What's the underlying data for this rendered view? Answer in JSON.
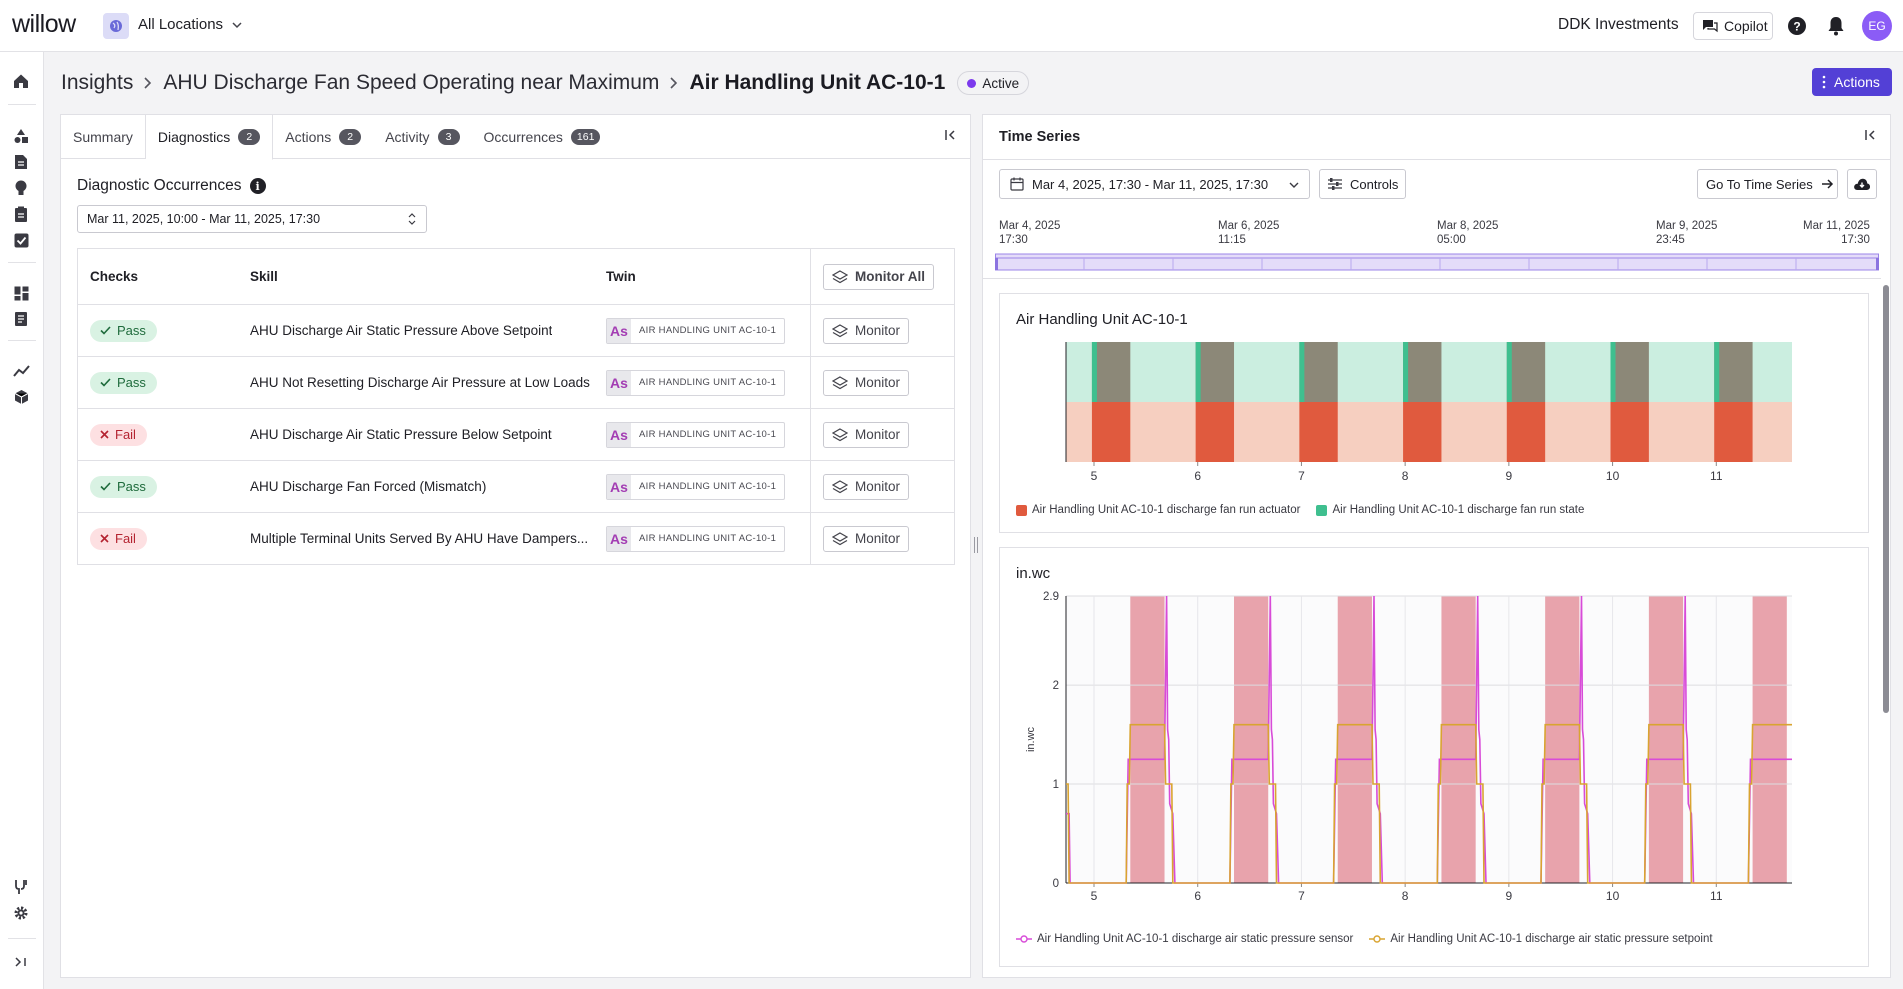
{
  "app": {
    "logo": "willow",
    "location": "All Locations",
    "company": "DDK Investments",
    "copilot_label": "Copilot",
    "avatar_initials": "EG"
  },
  "breadcrumb": {
    "root": "Insights",
    "insight": "AHU Discharge Fan Speed Operating near Maximum",
    "current": "Air Handling Unit AC-10-1",
    "status": "Active",
    "actions_label": "Actions"
  },
  "tabs": [
    {
      "label": "Summary",
      "count": null
    },
    {
      "label": "Diagnostics",
      "count": "2"
    },
    {
      "label": "Actions",
      "count": "2"
    },
    {
      "label": "Activity",
      "count": "3"
    },
    {
      "label": "Occurrences",
      "count": "161"
    }
  ],
  "diagnostics": {
    "title": "Diagnostic Occurrences",
    "date_range": "Mar 11, 2025, 10:00 - Mar 11, 2025, 17:30",
    "columns": {
      "checks": "Checks",
      "skill": "Skill",
      "twin": "Twin",
      "monitor_all": "Monitor All"
    },
    "monitor_label": "Monitor",
    "twin_initials": "As",
    "rows": [
      {
        "check": "Pass",
        "status": "pass",
        "skill": "AHU Discharge Air Static Pressure Above Setpoint",
        "twin": "AIR HANDLING UNIT AC-10-1"
      },
      {
        "check": "Pass",
        "status": "pass",
        "skill": "AHU Not Resetting Discharge Air Pressure at Low Loads",
        "twin": "AIR HANDLING UNIT AC-10-1"
      },
      {
        "check": "Fail",
        "status": "fail",
        "skill": "AHU Discharge Air Static Pressure Below Setpoint",
        "twin": "AIR HANDLING UNIT AC-10-1"
      },
      {
        "check": "Pass",
        "status": "pass",
        "skill": "AHU Discharge Fan Forced (Mismatch)",
        "twin": "AIR HANDLING UNIT AC-10-1"
      },
      {
        "check": "Fail",
        "status": "fail",
        "skill": "Multiple Terminal Units Served By AHU Have Dampers...",
        "twin": "AIR HANDLING UNIT AC-10-1"
      }
    ]
  },
  "time_series": {
    "title": "Time Series",
    "date_range": "Mar 4, 2025, 17:30 - Mar 11, 2025, 17:30",
    "controls_label": "Controls",
    "goto_label": "Go To Time Series",
    "timeline_labels": [
      {
        "date": "Mar 4, 2025",
        "time": "17:30"
      },
      {
        "date": "Mar 6, 2025",
        "time": "11:15"
      },
      {
        "date": "Mar 8, 2025",
        "time": "05:00"
      },
      {
        "date": "Mar 9, 2025",
        "time": "23:45"
      },
      {
        "date": "Mar 11, 2025",
        "time": "17:30"
      }
    ]
  },
  "colors": {
    "accent": "#5340d6",
    "actuator": "#e05a3e",
    "actuator_light": "#f6cfc0",
    "run_state_on": "#8c8878",
    "run_state_off": "#cbeee0",
    "run_state_edge": "#3fbf8f",
    "sensor": "#d84bd8",
    "setpoint": "#d9a431",
    "fail_band": "#e8a3ac"
  },
  "chart_data": [
    {
      "type": "area",
      "title": "Air Handling Unit AC-10-1",
      "x_ticks": [
        "5",
        "6",
        "7",
        "8",
        "9",
        "10",
        "11"
      ],
      "x_range": [
        4.73,
        11.73
      ],
      "on_periods": [
        [
          4.98,
          5.35
        ],
        [
          5.98,
          6.35
        ],
        [
          6.98,
          7.35
        ],
        [
          7.98,
          8.35
        ],
        [
          8.98,
          9.35
        ],
        [
          9.98,
          10.35
        ],
        [
          10.98,
          11.35
        ]
      ],
      "series": [
        {
          "name": "Air Handling Unit AC-10-1 discharge fan run actuator",
          "color": "#e05a3e"
        },
        {
          "name": "Air Handling Unit AC-10-1 discharge fan run state",
          "color": "#3fbf8f"
        }
      ]
    },
    {
      "type": "line",
      "title": "in.wc",
      "ylabel": "in.wc",
      "ylim": [
        0,
        2.9
      ],
      "y_ticks": [
        "0",
        "1",
        "2",
        "2.9"
      ],
      "x_ticks": [
        "5",
        "6",
        "7",
        "8",
        "9",
        "10",
        "11"
      ],
      "x_range": [
        4.73,
        11.73
      ],
      "fail_bands": [
        [
          5.35,
          5.68
        ],
        [
          6.35,
          6.68
        ],
        [
          7.35,
          7.68
        ],
        [
          8.35,
          8.68
        ],
        [
          9.35,
          9.68
        ],
        [
          10.35,
          10.68
        ],
        [
          11.35,
          11.68
        ]
      ],
      "series": [
        {
          "name": "Air Handling Unit AC-10-1 discharge air static pressure sensor",
          "color": "#d84bd8",
          "points": [
            [
              4.73,
              0.7
            ],
            [
              4.76,
              0.7
            ],
            [
              4.77,
              0
            ],
            [
              5.31,
              0
            ],
            [
              5.33,
              1.25
            ],
            [
              5.68,
              1.25
            ],
            [
              5.7,
              2.9
            ],
            [
              5.71,
              1.55
            ],
            [
              5.72,
              1.45
            ],
            [
              5.73,
              0.8
            ],
            [
              5.76,
              0.7
            ],
            [
              5.78,
              0
            ],
            [
              6.31,
              0
            ],
            [
              6.33,
              1.25
            ],
            [
              6.68,
              1.25
            ],
            [
              6.7,
              2.9
            ],
            [
              6.71,
              1.55
            ],
            [
              6.72,
              1.45
            ],
            [
              6.73,
              0.8
            ],
            [
              6.76,
              0.7
            ],
            [
              6.78,
              0
            ],
            [
              7.31,
              0
            ],
            [
              7.33,
              1.25
            ],
            [
              7.68,
              1.25
            ],
            [
              7.7,
              2.9
            ],
            [
              7.71,
              1.55
            ],
            [
              7.72,
              1.45
            ],
            [
              7.73,
              0.8
            ],
            [
              7.76,
              0.7
            ],
            [
              7.78,
              0
            ],
            [
              8.31,
              0
            ],
            [
              8.33,
              1.25
            ],
            [
              8.68,
              1.25
            ],
            [
              8.7,
              2.9
            ],
            [
              8.71,
              1.55
            ],
            [
              8.72,
              1.45
            ],
            [
              8.73,
              0.8
            ],
            [
              8.76,
              0.7
            ],
            [
              8.78,
              0
            ],
            [
              9.31,
              0
            ],
            [
              9.33,
              1.25
            ],
            [
              9.68,
              1.25
            ],
            [
              9.7,
              2.9
            ],
            [
              9.71,
              1.55
            ],
            [
              9.72,
              1.45
            ],
            [
              9.73,
              0.8
            ],
            [
              9.76,
              0.7
            ],
            [
              9.78,
              0
            ],
            [
              10.31,
              0
            ],
            [
              10.33,
              1.25
            ],
            [
              10.68,
              1.25
            ],
            [
              10.7,
              2.9
            ],
            [
              10.71,
              1.55
            ],
            [
              10.72,
              1.45
            ],
            [
              10.73,
              0.8
            ],
            [
              10.76,
              0.7
            ],
            [
              10.78,
              0
            ],
            [
              11.31,
              0
            ],
            [
              11.33,
              1.25
            ],
            [
              11.73,
              1.25
            ]
          ]
        },
        {
          "name": "Air Handling Unit AC-10-1 discharge air static pressure setpoint",
          "color": "#d9a431",
          "points": [
            [
              4.73,
              1
            ],
            [
              4.75,
              1
            ],
            [
              4.76,
              0
            ],
            [
              5.31,
              0
            ],
            [
              5.32,
              1
            ],
            [
              5.34,
              1
            ],
            [
              5.35,
              1.6
            ],
            [
              5.68,
              1.6
            ],
            [
              5.69,
              1
            ],
            [
              5.75,
              1
            ],
            [
              5.76,
              0
            ],
            [
              6.31,
              0
            ],
            [
              6.32,
              1
            ],
            [
              6.34,
              1
            ],
            [
              6.35,
              1.6
            ],
            [
              6.68,
              1.6
            ],
            [
              6.69,
              1
            ],
            [
              6.75,
              1
            ],
            [
              6.76,
              0
            ],
            [
              7.31,
              0
            ],
            [
              7.32,
              1
            ],
            [
              7.34,
              1
            ],
            [
              7.35,
              1.6
            ],
            [
              7.68,
              1.6
            ],
            [
              7.69,
              1
            ],
            [
              7.75,
              1
            ],
            [
              7.76,
              0
            ],
            [
              8.31,
              0
            ],
            [
              8.32,
              1
            ],
            [
              8.34,
              1
            ],
            [
              8.35,
              1.6
            ],
            [
              8.68,
              1.6
            ],
            [
              8.69,
              1
            ],
            [
              8.75,
              1
            ],
            [
              8.76,
              0
            ],
            [
              9.31,
              0
            ],
            [
              9.32,
              1
            ],
            [
              9.34,
              1
            ],
            [
              9.35,
              1.6
            ],
            [
              9.68,
              1.6
            ],
            [
              9.69,
              1
            ],
            [
              9.75,
              1
            ],
            [
              9.76,
              0
            ],
            [
              10.31,
              0
            ],
            [
              10.32,
              1
            ],
            [
              10.34,
              1
            ],
            [
              10.35,
              1.6
            ],
            [
              10.68,
              1.6
            ],
            [
              10.69,
              1
            ],
            [
              10.75,
              1
            ],
            [
              10.76,
              0
            ],
            [
              11.31,
              0
            ],
            [
              11.32,
              1
            ],
            [
              11.34,
              1
            ],
            [
              11.35,
              1.6
            ],
            [
              11.73,
              1.6
            ]
          ]
        }
      ]
    }
  ]
}
